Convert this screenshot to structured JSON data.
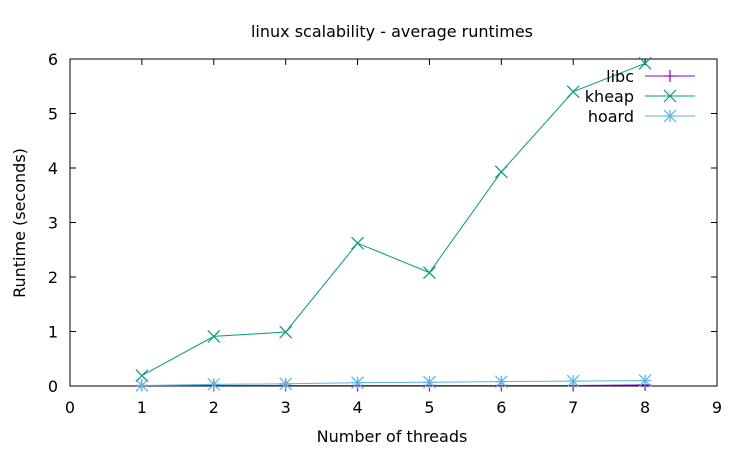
{
  "chart_data": {
    "type": "line",
    "title": "linux scalability - average runtimes",
    "xlabel": "Number of threads",
    "ylabel": "Runtime (seconds)",
    "xlim": [
      0,
      9
    ],
    "ylim": [
      0,
      6
    ],
    "xticks": [
      "0",
      "1",
      "2",
      "3",
      "4",
      "5",
      "6",
      "7",
      "8",
      "9"
    ],
    "yticks": [
      "0",
      "1",
      "2",
      "3",
      "4",
      "5",
      "6"
    ],
    "x": [
      1,
      2,
      3,
      4,
      5,
      6,
      7,
      8
    ],
    "legend_position": "top-right",
    "grid": false,
    "series": [
      {
        "name": "libc",
        "marker": "plus",
        "color": "#9400d3",
        "values": [
          0.01,
          0.01,
          0.01,
          0.01,
          0.01,
          0.01,
          0.01,
          0.02
        ]
      },
      {
        "name": "kheap",
        "marker": "cross",
        "color": "#009e73",
        "values": [
          0.19,
          0.91,
          0.99,
          2.62,
          2.08,
          3.93,
          5.4,
          5.92
        ]
      },
      {
        "name": "hoard",
        "marker": "star",
        "color": "#56b4e9",
        "values": [
          0.01,
          0.03,
          0.04,
          0.06,
          0.07,
          0.08,
          0.09,
          0.1
        ]
      }
    ]
  }
}
